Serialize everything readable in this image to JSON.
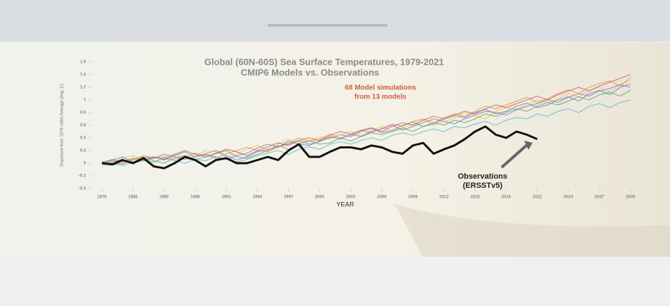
{
  "chart_data": {
    "type": "line",
    "title": "Global (60N-60S) Sea Surface Temperatures, 1979-2021",
    "subtitle": "CMIP6 Models vs. Observations",
    "annotations": [
      "68 Model simulations",
      "from 13 models",
      "Observations",
      "(ERSSTv5)"
    ],
    "x_label": "YEAR",
    "y_label": "Departure from 1979-1984 Average (deg. C)",
    "x": [
      1979,
      1980,
      1981,
      1982,
      1983,
      1984,
      1985,
      1986,
      1987,
      1988,
      1989,
      1990,
      1991,
      1992,
      1993,
      1994,
      1995,
      1996,
      1997,
      1998,
      1999,
      2000,
      2001,
      2002,
      2003,
      2004,
      2005,
      2006,
      2007,
      2008,
      2009,
      2010,
      2011,
      2012,
      2013,
      2014,
      2015,
      2016,
      2017,
      2018,
      2019,
      2020,
      2021,
      2022,
      2023,
      2024,
      2025,
      2026,
      2027,
      2028,
      2029,
      2030
    ],
    "xlim": [
      1978,
      2030
    ],
    "xticks": [
      1979,
      1982,
      1985,
      1988,
      1991,
      1994,
      1997,
      2000,
      2003,
      2006,
      2009,
      2012,
      2015,
      2018,
      2021,
      2024,
      2027,
      2030
    ],
    "ylim": [
      -0.4,
      1.6
    ],
    "yticks": [
      -0.4,
      -0.2,
      0,
      0.2,
      0.4,
      0.6,
      0.8,
      1,
      1.2,
      1.4,
      1.6
    ],
    "series": [
      {
        "color": "#4a7fd0",
        "values": [
          0.0,
          0.05,
          0.1,
          0.02,
          0.08,
          0.1,
          0.05,
          0.12,
          0.18,
          0.1,
          0.15,
          0.2,
          0.12,
          0.05,
          0.1,
          0.18,
          0.22,
          0.25,
          0.35,
          0.3,
          0.28,
          0.35,
          0.4,
          0.45,
          0.42,
          0.5,
          0.55,
          0.48,
          0.52,
          0.6,
          0.65,
          0.58,
          0.62,
          0.7,
          0.75,
          0.72,
          0.8,
          0.85,
          0.78,
          0.82,
          0.9,
          0.95,
          0.88,
          0.92,
          1.0,
          1.05,
          0.98,
          1.1,
          1.15,
          1.08,
          1.2,
          1.25
        ]
      },
      {
        "color": "#e8c440",
        "values": [
          -0.05,
          0.0,
          0.08,
          0.12,
          0.05,
          0.0,
          0.1,
          0.15,
          0.08,
          0.12,
          0.2,
          0.18,
          0.1,
          0.15,
          0.22,
          0.28,
          0.2,
          0.3,
          0.38,
          0.32,
          0.35,
          0.42,
          0.38,
          0.45,
          0.5,
          0.44,
          0.52,
          0.58,
          0.5,
          0.55,
          0.62,
          0.68,
          0.6,
          0.65,
          0.72,
          0.8,
          0.75,
          0.7,
          0.82,
          0.88,
          0.85,
          0.92,
          1.0,
          0.95,
          1.02,
          1.1,
          1.05,
          1.15,
          1.2,
          1.12,
          1.25,
          1.3
        ]
      },
      {
        "color": "#5aa05a",
        "values": [
          0.02,
          -0.03,
          0.0,
          0.06,
          0.1,
          0.04,
          0.0,
          0.08,
          0.12,
          0.06,
          0.1,
          0.15,
          0.2,
          0.1,
          0.08,
          0.14,
          0.2,
          0.28,
          0.22,
          0.3,
          0.36,
          0.3,
          0.32,
          0.4,
          0.35,
          0.42,
          0.48,
          0.45,
          0.5,
          0.56,
          0.5,
          0.58,
          0.64,
          0.6,
          0.68,
          0.64,
          0.7,
          0.78,
          0.74,
          0.8,
          0.86,
          0.82,
          0.9,
          0.96,
          0.92,
          0.98,
          1.05,
          1.0,
          1.08,
          1.12,
          1.06,
          1.15
        ]
      },
      {
        "color": "#e08a3c",
        "values": [
          0.0,
          0.04,
          -0.02,
          0.05,
          0.12,
          0.08,
          0.1,
          0.05,
          0.1,
          0.16,
          0.12,
          0.08,
          0.15,
          0.2,
          0.25,
          0.2,
          0.18,
          0.26,
          0.32,
          0.4,
          0.34,
          0.38,
          0.46,
          0.4,
          0.44,
          0.52,
          0.48,
          0.55,
          0.62,
          0.58,
          0.66,
          0.7,
          0.64,
          0.72,
          0.78,
          0.74,
          0.82,
          0.9,
          0.86,
          0.92,
          0.98,
          1.04,
          0.96,
          1.02,
          1.1,
          1.16,
          1.1,
          1.2,
          1.26,
          1.3,
          1.22,
          1.35
        ]
      },
      {
        "color": "#8a6cc0",
        "values": [
          -0.02,
          0.02,
          0.06,
          0.0,
          0.04,
          0.08,
          0.14,
          0.1,
          0.06,
          0.1,
          0.14,
          0.1,
          0.06,
          0.12,
          0.16,
          0.24,
          0.3,
          0.26,
          0.3,
          0.36,
          0.3,
          0.34,
          0.42,
          0.38,
          0.46,
          0.42,
          0.5,
          0.54,
          0.6,
          0.52,
          0.58,
          0.64,
          0.7,
          0.66,
          0.62,
          0.7,
          0.76,
          0.82,
          0.8,
          0.76,
          0.84,
          0.9,
          0.94,
          1.0,
          0.96,
          1.04,
          1.1,
          1.06,
          1.14,
          1.18,
          1.24,
          1.2
        ]
      },
      {
        "color": "#4ab8c8",
        "values": [
          0.03,
          0.0,
          -0.04,
          0.02,
          0.06,
          0.02,
          0.08,
          0.04,
          0.0,
          0.06,
          0.04,
          0.1,
          0.06,
          0.02,
          0.06,
          0.12,
          0.16,
          0.2,
          0.14,
          0.22,
          0.26,
          0.22,
          0.3,
          0.34,
          0.3,
          0.36,
          0.4,
          0.36,
          0.44,
          0.48,
          0.44,
          0.5,
          0.54,
          0.5,
          0.58,
          0.56,
          0.62,
          0.66,
          0.6,
          0.68,
          0.72,
          0.7,
          0.78,
          0.74,
          0.82,
          0.86,
          0.8,
          0.9,
          0.94,
          0.88,
          0.96,
          1.0
        ]
      },
      {
        "color": "#d05050",
        "values": [
          0.01,
          0.06,
          0.02,
          0.08,
          0.04,
          0.1,
          0.06,
          0.14,
          0.2,
          0.14,
          0.1,
          0.16,
          0.22,
          0.18,
          0.12,
          0.2,
          0.26,
          0.32,
          0.28,
          0.36,
          0.4,
          0.36,
          0.44,
          0.5,
          0.46,
          0.52,
          0.56,
          0.5,
          0.58,
          0.64,
          0.6,
          0.68,
          0.74,
          0.7,
          0.76,
          0.82,
          0.78,
          0.86,
          0.92,
          0.88,
          0.94,
          1.0,
          1.06,
          1.0,
          1.08,
          1.14,
          1.2,
          1.14,
          1.22,
          1.28,
          1.34,
          1.4
        ]
      },
      {
        "color": "#111111",
        "values": [
          0.0,
          -0.02,
          0.05,
          0.0,
          0.08,
          -0.05,
          -0.08,
          0.0,
          0.1,
          0.05,
          -0.05,
          0.05,
          0.08,
          0.0,
          0.0,
          0.05,
          0.1,
          0.05,
          0.2,
          0.3,
          0.1,
          0.1,
          0.18,
          0.25,
          0.25,
          0.22,
          0.28,
          0.25,
          0.18,
          0.15,
          0.28,
          0.32,
          0.15,
          0.22,
          0.28,
          0.38,
          0.5,
          0.58,
          0.45,
          0.4,
          0.5,
          0.45,
          0.38,
          null,
          null,
          null,
          null,
          null,
          null,
          null,
          null,
          null
        ]
      }
    ]
  }
}
